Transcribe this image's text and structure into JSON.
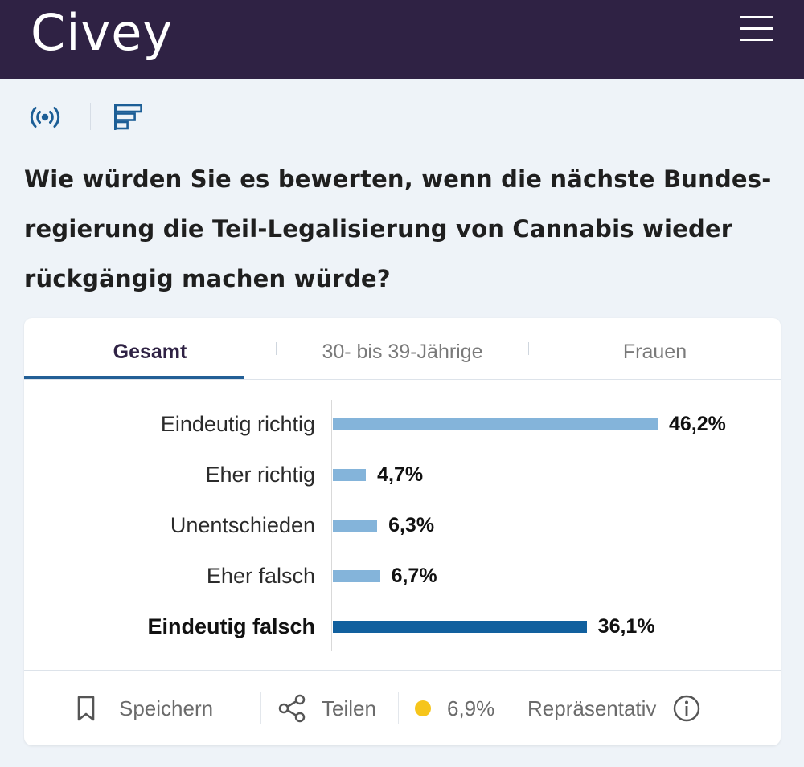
{
  "header": {
    "logo": "Civey",
    "menu_icon": "hamburger-menu-icon"
  },
  "toolbar": {
    "live_icon": "live-broadcast-icon",
    "chart_icon": "bar-chart-icon"
  },
  "question": "Wie würden Sie es bewerten, wenn die nächste Bundes-regierung die Teil-Legalisierung von Cannabis wieder rückgängig machen würde?",
  "tabs": [
    {
      "label": "Gesamt",
      "active": true
    },
    {
      "label": "30- bis 39-Jährige",
      "active": false
    },
    {
      "label": "Frauen",
      "active": false
    }
  ],
  "chart_data": {
    "type": "bar",
    "orientation": "horizontal",
    "categories": [
      "Eindeutig richtig",
      "Eher richtig",
      "Unentschieden",
      "Eher falsch",
      "Eindeutig falsch"
    ],
    "values": [
      46.2,
      4.7,
      6.3,
      6.7,
      36.1
    ],
    "value_labels": [
      "46,2%",
      "4,7%",
      "6,3%",
      "6,7%",
      "36,1%"
    ],
    "highlighted_category": "Eindeutig falsch",
    "colors": {
      "bar": "#84b4da",
      "highlight": "#11609e"
    }
  },
  "footer": {
    "save_label": "Speichern",
    "share_label": "Teilen",
    "error_margin": "6,9%",
    "status_color": "#f6c51b",
    "representative_label": "Repräsentativ",
    "icons": [
      "bookmark-icon",
      "share-icon",
      "info-icon"
    ]
  },
  "colors": {
    "header_bg": "#2f2244",
    "page_bg": "#eef3f8",
    "accent": "#235f96"
  }
}
